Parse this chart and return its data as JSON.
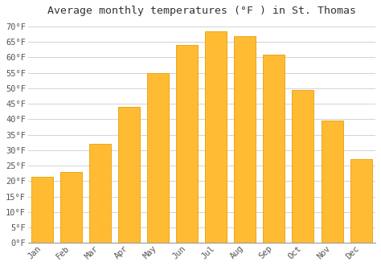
{
  "title": "Average monthly temperatures (°F ) in St. Thomas",
  "months": [
    "Jan",
    "Feb",
    "Mar",
    "Apr",
    "May",
    "Jun",
    "Jul",
    "Aug",
    "Sep",
    "Oct",
    "Nov",
    "Dec"
  ],
  "values": [
    21.5,
    23.0,
    32.0,
    44.0,
    55.0,
    64.0,
    68.5,
    67.0,
    61.0,
    49.5,
    39.5,
    27.0
  ],
  "bar_color": "#FFBB33",
  "bar_edge_color": "#E8A000",
  "background_color": "#FFFFFF",
  "grid_color": "#CCCCCC",
  "ylim": [
    0,
    72
  ],
  "yticks": [
    0,
    5,
    10,
    15,
    20,
    25,
    30,
    35,
    40,
    45,
    50,
    55,
    60,
    65,
    70
  ],
  "ytick_labels": [
    "0°F",
    "5°F",
    "10°F",
    "15°F",
    "20°F",
    "25°F",
    "30°F",
    "35°F",
    "40°F",
    "45°F",
    "50°F",
    "55°F",
    "60°F",
    "65°F",
    "70°F"
  ],
  "title_fontsize": 9.5,
  "tick_fontsize": 7.5,
  "title_color": "#333333",
  "tick_color": "#555555",
  "xlabel_rotation": 45
}
